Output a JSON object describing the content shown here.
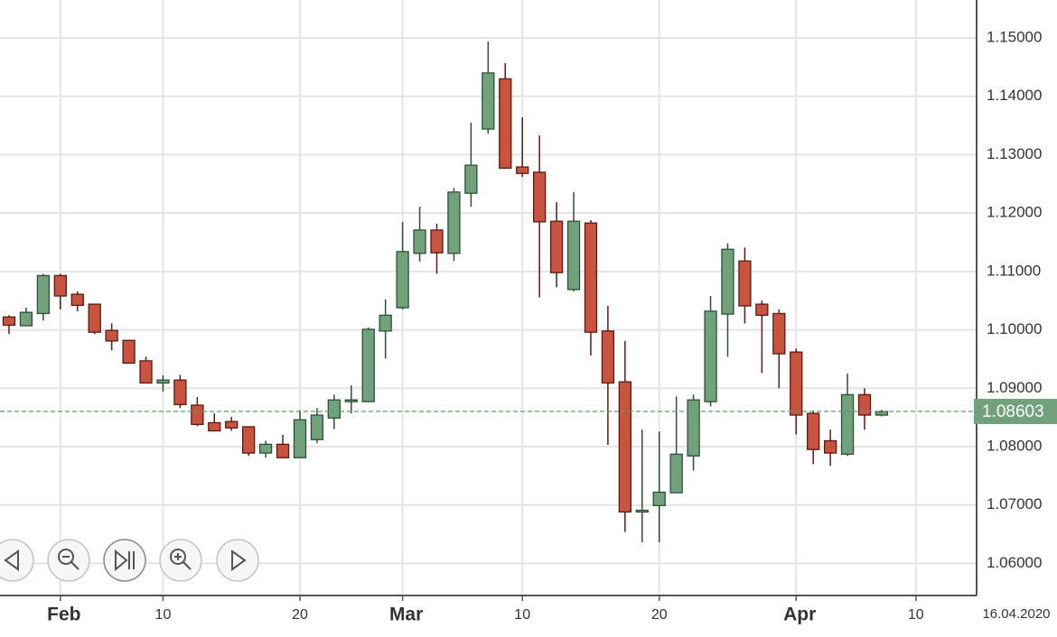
{
  "chart_data": {
    "type": "candlestick",
    "categories": [
      null,
      null,
      null,
      "Feb",
      null,
      null,
      null,
      null,
      null,
      "10",
      null,
      null,
      null,
      null,
      null,
      null,
      null,
      "20",
      null,
      null,
      null,
      null,
      null,
      "Mar",
      null,
      null,
      null,
      null,
      null,
      null,
      "10",
      null,
      null,
      null,
      null,
      null,
      null,
      null,
      "20",
      null,
      null,
      null,
      null,
      null,
      null,
      null,
      "Apr",
      null,
      null,
      null,
      null,
      null,
      null,
      "10"
    ],
    "open": [
      1.1022,
      1.1007,
      1.1028,
      1.1093,
      1.1061,
      1.1044,
      1.0999,
      1.0982,
      1.0947,
      1.0909,
      1.0914,
      1.0871,
      1.0841,
      1.0843,
      1.0834,
      1.0789,
      1.0804,
      1.0781,
      1.0812,
      1.0849,
      1.0877,
      1.0877,
      1.0998,
      1.1038,
      1.1131,
      1.1171,
      1.1131,
      1.1234,
      1.1344,
      1.143,
      1.1279,
      1.127,
      1.1186,
      1.1069,
      1.1183,
      1.0998,
      1.0911,
      1.0688,
      1.0699,
      1.0721,
      1.0784,
      1.0877,
      1.1027,
      1.1118,
      1.1044,
      1.1028,
      1.0962,
      1.0857,
      1.081,
      1.0787,
      1.0889,
      1.0854,
      null,
      null
    ],
    "high": [
      1.1025,
      1.1038,
      1.1096,
      1.1096,
      1.1066,
      1.1044,
      1.1011,
      1.0982,
      1.0954,
      1.0922,
      1.0923,
      1.0885,
      1.0857,
      1.0851,
      1.0834,
      1.081,
      1.082,
      1.0862,
      1.0866,
      1.0889,
      1.0905,
      1.1004,
      1.1052,
      1.1185,
      1.1211,
      1.1182,
      1.1243,
      1.1355,
      1.1494,
      1.1457,
      1.1364,
      1.1333,
      1.1219,
      1.1236,
      1.1188,
      1.1041,
      1.0981,
      1.0829,
      1.0826,
      1.0886,
      1.0889,
      1.1058,
      1.1148,
      1.1141,
      1.105,
      1.1035,
      1.0968,
      1.0862,
      1.0829,
      1.0925,
      1.09,
      1.0863,
      null,
      null
    ],
    "low": [
      1.0993,
      1.1007,
      1.1016,
      1.1035,
      1.1032,
      1.0993,
      1.0965,
      1.0942,
      1.0908,
      1.0894,
      1.0866,
      1.0835,
      1.0826,
      1.0827,
      1.0784,
      1.0781,
      1.078,
      1.078,
      1.0806,
      1.083,
      1.0857,
      1.0877,
      1.0951,
      1.1035,
      1.1117,
      1.1096,
      1.1118,
      1.1211,
      1.1336,
      1.1277,
      1.1262,
      1.1056,
      1.1073,
      1.1066,
      1.0956,
      1.0803,
      1.0654,
      1.0636,
      1.0636,
      1.0721,
      1.0759,
      1.0869,
      1.0954,
      1.1011,
      1.0926,
      1.09,
      1.0821,
      1.077,
      1.0767,
      1.0784,
      1.0829,
      1.0852,
      null,
      null
    ],
    "close": [
      1.1008,
      1.103,
      1.1093,
      1.1058,
      1.1042,
      1.0996,
      1.0981,
      1.0943,
      1.0909,
      1.0914,
      1.0872,
      1.0838,
      1.0827,
      1.0832,
      1.0789,
      1.0804,
      1.0781,
      1.0846,
      1.0854,
      1.088,
      1.088,
      1.1001,
      1.1025,
      1.1134,
      1.1171,
      1.1132,
      1.1236,
      1.1282,
      1.144,
      1.1277,
      1.1268,
      1.1185,
      1.1098,
      1.1186,
      1.0996,
      1.0909,
      1.0688,
      1.0691,
      1.0722,
      1.0787,
      1.088,
      1.1032,
      1.1138,
      1.1041,
      1.1025,
      1.0959,
      1.0854,
      1.0795,
      1.0789,
      1.0889,
      1.0854,
      1.086,
      null,
      null
    ],
    "up_color": "#72a27c",
    "down_color": "#c8533f",
    "ylim": [
      1.0545,
      1.1565
    ],
    "yticks": [
      {
        "value": 1.06,
        "label": "1.06000"
      },
      {
        "value": 1.07,
        "label": "1.07000"
      },
      {
        "value": 1.08,
        "label": "1.08000"
      },
      {
        "value": 1.09,
        "label": "1.09000"
      },
      {
        "value": 1.1,
        "label": "1.10000"
      },
      {
        "value": 1.11,
        "label": "1.11000"
      },
      {
        "value": 1.12,
        "label": "1.12000"
      },
      {
        "value": 1.13,
        "label": "1.13000"
      },
      {
        "value": 1.14,
        "label": "1.14000"
      },
      {
        "value": 1.15,
        "label": "1.15000"
      }
    ],
    "grid": true,
    "last_price": 1.08603,
    "date_label": "16.04.2020"
  }
}
